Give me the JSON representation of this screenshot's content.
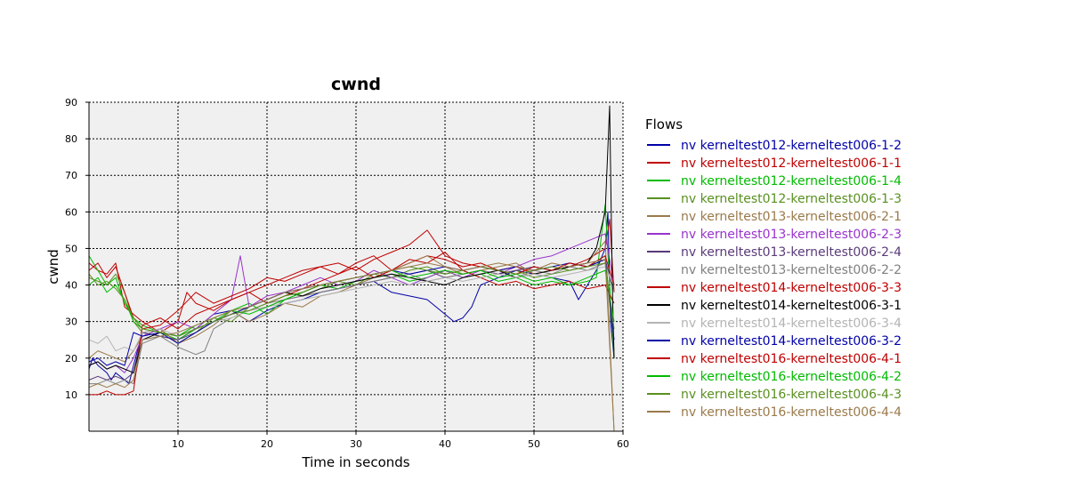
{
  "chart_data": {
    "type": "line",
    "title": "cwnd",
    "xlabel": "Time in seconds",
    "ylabel": "cwnd",
    "xlim": [
      0,
      60
    ],
    "ylim": [
      0,
      90
    ],
    "xticks": [
      10,
      20,
      30,
      40,
      50,
      60
    ],
    "yticks": [
      10,
      20,
      30,
      40,
      50,
      60,
      70,
      80,
      90
    ],
    "grid": true,
    "legend": {
      "title": "Flows",
      "position": "right"
    },
    "series": [
      {
        "name": "nv kerneltest012-kerneltest006-1-2",
        "color": "#0000a8",
        "x": [
          0,
          0.4,
          1,
          2,
          2.5,
          3,
          4,
          4.5,
          5,
          6,
          8,
          10,
          12,
          14,
          16,
          18,
          20,
          22,
          24,
          26,
          28,
          30,
          32,
          34,
          36,
          38,
          40,
          41,
          42,
          43,
          44,
          46,
          48,
          50,
          52,
          54,
          55,
          56,
          57,
          58,
          58.3,
          58.6,
          59
        ],
        "y": [
          17,
          20,
          18,
          16,
          14,
          16,
          14,
          13,
          18,
          27,
          26,
          25,
          28,
          32,
          33,
          30,
          33,
          35,
          36,
          38,
          39,
          40,
          41,
          38,
          37,
          36,
          32,
          30,
          31,
          34,
          40,
          42,
          44,
          43,
          42,
          41,
          36,
          40,
          44,
          50,
          60,
          30,
          20
        ]
      },
      {
        "name": "nv kerneltest012-kerneltest006-1-1",
        "color": "#c00000",
        "x": [
          0,
          1,
          2,
          3,
          3.5,
          4,
          6,
          8,
          10,
          11,
          12,
          14,
          16,
          18,
          20,
          22,
          24,
          26,
          28,
          30,
          32,
          34,
          36,
          38,
          40,
          42,
          44,
          46,
          48,
          50,
          52,
          54,
          56,
          58,
          58.5,
          59
        ],
        "y": [
          46,
          44,
          43,
          46,
          40,
          34,
          30,
          27,
          30,
          38,
          35,
          33,
          36,
          38,
          40,
          42,
          44,
          45,
          43,
          46,
          48,
          44,
          46,
          48,
          47,
          45,
          46,
          44,
          45,
          43,
          44,
          45,
          47,
          50,
          58,
          38
        ]
      },
      {
        "name": "nv kerneltest012-kerneltest006-1-4",
        "color": "#00bb00",
        "x": [
          0,
          1,
          2,
          3,
          4,
          5,
          6,
          8,
          10,
          12,
          14,
          16,
          18,
          20,
          22,
          24,
          26,
          28,
          30,
          32,
          34,
          36,
          38,
          40,
          42,
          44,
          46,
          48,
          50,
          52,
          54,
          56,
          57,
          58,
          58.5,
          59
        ],
        "y": [
          48,
          44,
          40,
          42,
          35,
          31,
          29,
          27,
          25,
          28,
          30,
          33,
          35,
          32,
          36,
          38,
          40,
          39,
          41,
          42,
          43,
          41,
          42,
          44,
          42,
          43,
          41,
          42,
          40,
          41,
          40,
          41,
          42,
          62,
          40,
          20
        ]
      },
      {
        "name": "nv kerneltest012-kerneltest006-1-3",
        "color": "#5a9020",
        "x": [
          0,
          1,
          2,
          3,
          4,
          5,
          6,
          8,
          10,
          12,
          14,
          16,
          18,
          20,
          22,
          24,
          26,
          28,
          30,
          32,
          34,
          36,
          38,
          40,
          42,
          44,
          46,
          48,
          50,
          52,
          54,
          56,
          58,
          59
        ],
        "y": [
          42,
          41,
          40,
          43,
          38,
          30,
          27,
          28,
          24,
          27,
          31,
          30,
          34,
          36,
          38,
          37,
          39,
          41,
          40,
          43,
          42,
          44,
          45,
          43,
          44,
          42,
          43,
          44,
          42,
          43,
          44,
          45,
          48,
          22
        ]
      },
      {
        "name": "nv kerneltest013-kerneltest006-2-1",
        "color": "#9a7a4a",
        "x": [
          0,
          1,
          2,
          3,
          4,
          5,
          6,
          8,
          10,
          12,
          14,
          16,
          18,
          20,
          22,
          24,
          26,
          28,
          30,
          32,
          34,
          36,
          38,
          40,
          42,
          44,
          46,
          48,
          50,
          52,
          54,
          56,
          58,
          59
        ],
        "y": [
          20,
          22,
          21,
          20,
          19,
          22,
          26,
          28,
          24,
          26,
          29,
          33,
          30,
          32,
          35,
          34,
          37,
          38,
          40,
          42,
          44,
          46,
          48,
          45,
          43,
          44,
          45,
          46,
          43,
          44,
          45,
          46,
          52,
          0
        ]
      },
      {
        "name": "nv kerneltest013-kerneltest006-2-3",
        "color": "#9933cc",
        "x": [
          0,
          1,
          2,
          3,
          4,
          5,
          6,
          8,
          10,
          12,
          14,
          16,
          17,
          18,
          20,
          22,
          24,
          26,
          28,
          30,
          32,
          34,
          36,
          38,
          40,
          42,
          44,
          46,
          48,
          50,
          52,
          54,
          56,
          58,
          59
        ],
        "y": [
          18,
          19,
          17,
          18,
          16,
          20,
          26,
          28,
          30,
          28,
          32,
          36,
          48,
          34,
          37,
          38,
          40,
          42,
          40,
          41,
          44,
          42,
          40,
          42,
          44,
          42,
          44,
          43,
          45,
          47,
          48,
          50,
          52,
          54,
          40
        ]
      },
      {
        "name": "nv kerneltest013-kerneltest006-2-4",
        "color": "#5a3a78",
        "x": [
          0,
          1,
          2,
          3,
          4,
          5,
          6,
          8,
          10,
          12,
          14,
          16,
          18,
          20,
          22,
          24,
          26,
          28,
          30,
          32,
          34,
          36,
          38,
          40,
          42,
          44,
          46,
          48,
          50,
          52,
          54,
          56,
          58,
          59
        ],
        "y": [
          14,
          15,
          14,
          15,
          14,
          16,
          27,
          26,
          25,
          27,
          30,
          32,
          33,
          34,
          36,
          37,
          38,
          39,
          40,
          41,
          42,
          43,
          44,
          42,
          43,
          44,
          43,
          44,
          45,
          44,
          46,
          45,
          47,
          38
        ]
      },
      {
        "name": "nv kerneltest013-kerneltest006-2-2",
        "color": "#808080",
        "x": [
          0,
          1,
          2,
          3,
          4,
          5,
          6,
          8,
          10,
          12,
          13,
          14,
          16,
          18,
          20,
          22,
          24,
          26,
          28,
          30,
          32,
          34,
          36,
          38,
          40,
          42,
          44,
          46,
          48,
          50,
          52,
          54,
          56,
          58,
          59
        ],
        "y": [
          13,
          13,
          14,
          13,
          14,
          13,
          24,
          26,
          23,
          21,
          22,
          28,
          31,
          33,
          35,
          36,
          37,
          38,
          39,
          40,
          41,
          42,
          43,
          41,
          42,
          43,
          44,
          43,
          42,
          44,
          43,
          45,
          44,
          46,
          38
        ]
      },
      {
        "name": "nv kerneltest014-kerneltest006-3-3",
        "color": "#c00000",
        "x": [
          0,
          1,
          2,
          3,
          4,
          5,
          6,
          8,
          10,
          12,
          14,
          16,
          18,
          20,
          22,
          24,
          26,
          28,
          30,
          32,
          34,
          36,
          38,
          40,
          42,
          44,
          46,
          48,
          50,
          52,
          54,
          56,
          58,
          59
        ],
        "y": [
          10,
          10,
          11,
          10,
          10,
          11,
          29,
          31,
          28,
          32,
          34,
          36,
          38,
          35,
          37,
          39,
          41,
          43,
          45,
          42,
          44,
          47,
          46,
          49,
          44,
          42,
          40,
          41,
          39,
          40,
          41,
          39,
          40,
          35
        ]
      },
      {
        "name": "nv kerneltest014-kerneltest006-3-1",
        "color": "#000000",
        "x": [
          0,
          1,
          2,
          3,
          4,
          5,
          6,
          8,
          10,
          12,
          14,
          16,
          18,
          20,
          22,
          24,
          26,
          28,
          30,
          32,
          34,
          36,
          38,
          40,
          42,
          44,
          46,
          48,
          50,
          52,
          54,
          56,
          57,
          58,
          58.5,
          58.8,
          59
        ],
        "y": [
          18,
          19,
          17,
          18,
          17,
          16,
          25,
          27,
          26,
          28,
          30,
          32,
          34,
          36,
          38,
          37,
          39,
          40,
          41,
          42,
          43,
          42,
          41,
          40,
          42,
          43,
          44,
          42,
          43,
          44,
          45,
          46,
          50,
          60,
          89,
          40,
          20
        ]
      },
      {
        "name": "nv kerneltest014-kerneltest006-3-4",
        "color": "#b4b4b4",
        "x": [
          0,
          1,
          2,
          3,
          4,
          5,
          6,
          8,
          10,
          12,
          14,
          16,
          18,
          20,
          22,
          24,
          26,
          28,
          30,
          32,
          34,
          36,
          38,
          40,
          42,
          44,
          46,
          48,
          50,
          52,
          54,
          56,
          58,
          59
        ],
        "y": [
          25,
          24,
          26,
          22,
          23,
          22,
          27,
          28,
          26,
          28,
          30,
          31,
          33,
          34,
          35,
          36,
          37,
          38,
          39,
          40,
          41,
          40,
          41,
          42,
          41,
          42,
          43,
          42,
          43,
          42,
          43,
          44,
          45,
          40
        ]
      },
      {
        "name": "nv kerneltest014-kerneltest006-3-2",
        "color": "#0000a8",
        "x": [
          0,
          1,
          2,
          3,
          4,
          5,
          6,
          8,
          10,
          12,
          14,
          16,
          18,
          20,
          22,
          24,
          26,
          28,
          30,
          32,
          34,
          36,
          38,
          40,
          42,
          44,
          46,
          48,
          50,
          52,
          54,
          56,
          58,
          59
        ],
        "y": [
          19,
          20,
          18,
          19,
          18,
          27,
          26,
          27,
          24,
          27,
          30,
          32,
          34,
          36,
          38,
          39,
          40,
          41,
          42,
          43,
          44,
          43,
          44,
          45,
          44,
          45,
          44,
          45,
          44,
          45,
          46,
          45,
          47,
          25
        ]
      },
      {
        "name": "nv kerneltest016-kerneltest006-4-1",
        "color": "#c00000",
        "x": [
          0,
          1,
          2,
          3,
          4,
          5,
          6,
          8,
          10,
          12,
          14,
          16,
          18,
          20,
          22,
          24,
          26,
          28,
          30,
          32,
          34,
          36,
          38,
          40,
          42,
          44,
          46,
          48,
          50,
          52,
          54,
          56,
          58,
          59
        ],
        "y": [
          44,
          46,
          42,
          45,
          38,
          31,
          28,
          29,
          33,
          38,
          35,
          37,
          39,
          42,
          41,
          43,
          45,
          46,
          44,
          47,
          49,
          51,
          55,
          48,
          46,
          45,
          44,
          43,
          45,
          44,
          46,
          45,
          48,
          40
        ]
      },
      {
        "name": "nv kerneltest016-kerneltest006-4-2",
        "color": "#00bb00",
        "x": [
          0,
          1,
          2,
          3,
          4,
          5,
          6,
          8,
          10,
          12,
          14,
          16,
          18,
          20,
          22,
          24,
          26,
          28,
          30,
          32,
          34,
          36,
          38,
          40,
          42,
          44,
          46,
          48,
          50,
          52,
          54,
          56,
          58,
          59
        ],
        "y": [
          40,
          42,
          38,
          40,
          36,
          30,
          28,
          27,
          26,
          29,
          31,
          33,
          32,
          34,
          36,
          38,
          40,
          41,
          42,
          43,
          44,
          42,
          43,
          44,
          43,
          44,
          42,
          43,
          41,
          42,
          40,
          42,
          44,
          30
        ]
      },
      {
        "name": "nv kerneltest016-kerneltest006-4-3",
        "color": "#5a9020",
        "x": [
          0,
          1,
          2,
          3,
          4,
          5,
          6,
          8,
          10,
          12,
          14,
          16,
          18,
          20,
          22,
          24,
          26,
          28,
          30,
          32,
          34,
          36,
          38,
          40,
          42,
          44,
          46,
          48,
          50,
          52,
          54,
          56,
          58,
          59
        ],
        "y": [
          43,
          40,
          41,
          39,
          36,
          31,
          28,
          27,
          26,
          28,
          30,
          32,
          33,
          35,
          37,
          38,
          40,
          41,
          42,
          43,
          44,
          45,
          44,
          43,
          44,
          45,
          44,
          43,
          44,
          45,
          44,
          45,
          46,
          28
        ]
      },
      {
        "name": "nv kerneltest016-kerneltest006-4-4",
        "color": "#9a7a4a",
        "x": [
          0,
          1,
          2,
          3,
          4,
          5,
          6,
          8,
          10,
          12,
          14,
          16,
          18,
          20,
          22,
          24,
          26,
          28,
          30,
          32,
          34,
          36,
          38,
          40,
          42,
          44,
          46,
          48,
          50,
          52,
          54,
          56,
          58,
          59
        ],
        "y": [
          12,
          13,
          12,
          13,
          12,
          14,
          25,
          26,
          27,
          29,
          31,
          33,
          34,
          36,
          38,
          39,
          40,
          41,
          42,
          43,
          44,
          45,
          46,
          45,
          44,
          45,
          46,
          45,
          44,
          46,
          45,
          46,
          47,
          0
        ]
      }
    ]
  }
}
